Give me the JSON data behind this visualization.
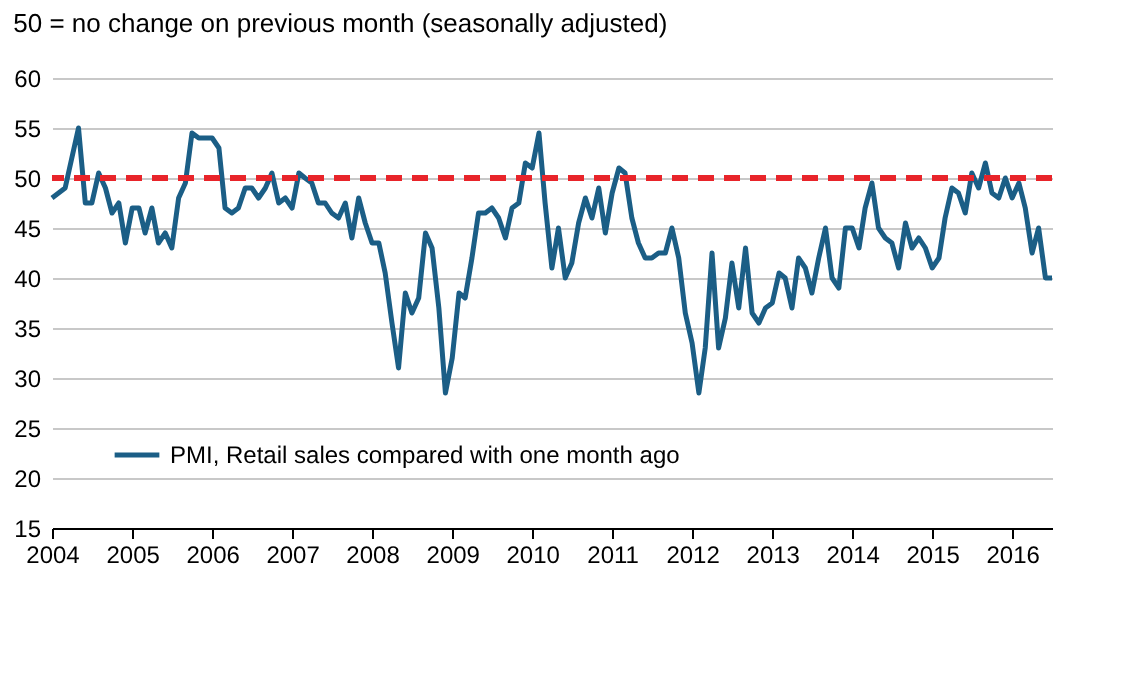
{
  "chart_data": {
    "type": "line",
    "title": "50 = no change on previous month (seasonally adjusted)",
    "x": [
      "2004-01",
      "2004-03",
      "2004-05",
      "2004-06",
      "2004-07",
      "2004-08",
      "2004-09",
      "2004-10",
      "2004-11",
      "2004-12",
      "2005-01",
      "2005-02",
      "2005-03",
      "2005-04",
      "2005-05",
      "2005-06",
      "2005-07",
      "2005-08",
      "2005-09",
      "2005-10",
      "2005-11",
      "2005-12",
      "2006-01",
      "2006-02",
      "2006-03",
      "2006-04",
      "2006-05",
      "2006-06",
      "2006-07",
      "2006-08",
      "2006-09",
      "2006-10",
      "2006-11",
      "2006-12",
      "2007-01",
      "2007-02",
      "2007-03",
      "2007-04",
      "2007-05",
      "2007-06",
      "2007-07",
      "2007-08",
      "2007-09",
      "2007-10",
      "2007-11",
      "2007-12",
      "2008-01",
      "2008-02",
      "2008-03",
      "2008-04",
      "2008-05",
      "2008-06",
      "2008-07",
      "2008-08",
      "2008-09",
      "2008-10",
      "2008-11",
      "2008-12",
      "2009-01",
      "2009-02",
      "2009-03",
      "2009-04",
      "2009-05",
      "2009-06",
      "2009-07",
      "2009-08",
      "2009-09",
      "2009-10",
      "2009-11",
      "2009-12",
      "2010-01",
      "2010-02",
      "2010-03",
      "2010-04",
      "2010-05",
      "2010-06",
      "2010-07",
      "2010-08",
      "2010-09",
      "2010-10",
      "2010-11",
      "2010-12",
      "2011-01",
      "2011-02",
      "2011-03",
      "2011-04",
      "2011-05",
      "2011-06",
      "2011-07",
      "2011-08",
      "2011-09",
      "2011-10",
      "2011-11",
      "2011-12",
      "2012-01",
      "2012-02",
      "2012-03",
      "2012-04",
      "2012-05",
      "2012-06",
      "2012-07",
      "2012-08",
      "2012-09",
      "2012-10",
      "2012-11",
      "2012-12",
      "2013-01",
      "2013-02",
      "2013-03",
      "2013-04",
      "2013-05",
      "2013-06",
      "2013-07",
      "2013-08",
      "2013-09",
      "2013-10",
      "2013-11",
      "2013-12",
      "2014-01",
      "2014-02",
      "2014-03",
      "2014-04",
      "2014-05",
      "2014-06",
      "2014-07",
      "2014-08",
      "2014-09",
      "2014-10",
      "2014-11",
      "2014-12",
      "2015-01",
      "2015-02",
      "2015-03",
      "2015-04",
      "2015-05",
      "2015-06",
      "2015-07",
      "2015-08",
      "2015-09",
      "2015-10",
      "2015-11",
      "2015-12",
      "2016-01",
      "2016-02",
      "2016-03",
      "2016-04",
      "2016-05",
      "2016-06",
      "2016-07"
    ],
    "series": [
      {
        "name": "PMI, Retail sales compared with one month ago",
        "color": "#1b5e86",
        "values": [
          48,
          49,
          55,
          47.5,
          47.5,
          50.5,
          49,
          46.5,
          47.5,
          43.5,
          47,
          47,
          44.5,
          47,
          43.5,
          44.5,
          43,
          48,
          49.5,
          54.5,
          54,
          54,
          54,
          53,
          47,
          46.5,
          47,
          49,
          49,
          48,
          49,
          50.5,
          47.5,
          48,
          47,
          50.5,
          50,
          49.5,
          47.5,
          47.5,
          46.5,
          46,
          47.5,
          44,
          48,
          45.5,
          43.5,
          43.5,
          40.5,
          35.5,
          31,
          38.5,
          36.5,
          38,
          44.5,
          43,
          37,
          28.5,
          32,
          38.5,
          38,
          42,
          46.5,
          46.5,
          47,
          46,
          44,
          47,
          47.5,
          51.5,
          51,
          54.5,
          47.5,
          41,
          45,
          40,
          41.5,
          45.5,
          48,
          46,
          49,
          44.5,
          48.5,
          51,
          50.5,
          46,
          43.5,
          42,
          42,
          42.5,
          42.5,
          45,
          42,
          36.5,
          33.5,
          28.5,
          33,
          42.5,
          33,
          36,
          41.5,
          37,
          43,
          36.5,
          35.5,
          37,
          37.5,
          40.5,
          40,
          37,
          42,
          41,
          38.5,
          42,
          45,
          40,
          39,
          45,
          45,
          43,
          47,
          49.5,
          45,
          44,
          43.5,
          41,
          45.5,
          43,
          44,
          43,
          41,
          42,
          46,
          49,
          48.5,
          46.5,
          50.5,
          49,
          51.5,
          48.5,
          48,
          50,
          48,
          49.5,
          47,
          42.5,
          45,
          40,
          40
        ]
      }
    ],
    "xlim": [
      "2004-01",
      "2016-07"
    ],
    "xticks": [
      "2004",
      "2005",
      "2006",
      "2007",
      "2008",
      "2009",
      "2010",
      "2011",
      "2012",
      "2013",
      "2014",
      "2015",
      "2016"
    ],
    "ylim": [
      15,
      60
    ],
    "yticks": [
      15,
      20,
      25,
      30,
      35,
      40,
      45,
      50,
      55,
      60
    ],
    "grid": "y",
    "legend": "bottom left",
    "ref_lines": [
      {
        "axis": "y",
        "value": 50,
        "color": "#e8242a",
        "line_style": "dashed"
      }
    ]
  }
}
